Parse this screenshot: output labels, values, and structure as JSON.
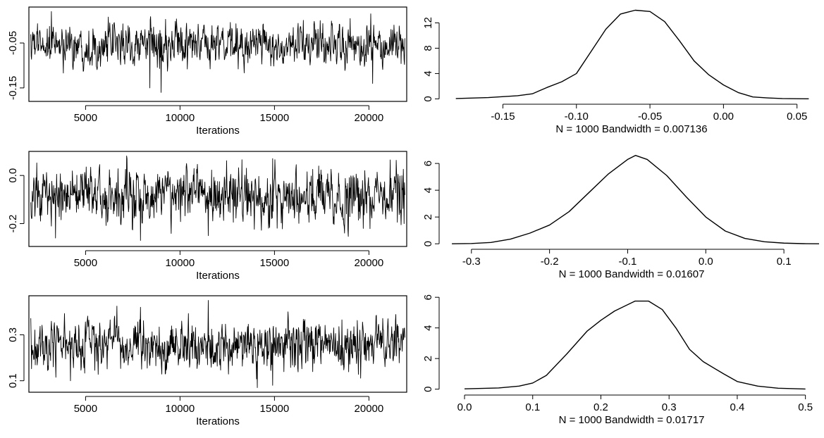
{
  "chart_data": [
    {
      "type": "line",
      "kind": "trace",
      "xlabel": "Iterations",
      "xlim": [
        2000,
        22000
      ],
      "ylim": [
        -0.18,
        0.03
      ],
      "xticks": [
        5000,
        10000,
        15000,
        20000
      ],
      "yticks": [
        -0.15,
        -0.05
      ],
      "ytick_labels": [
        "-0.15",
        "-0.05"
      ],
      "n_points": 1000,
      "center": -0.055,
      "spread": 0.022,
      "extremes": [
        [
          3200,
          0.02
        ],
        [
          9000,
          -0.16
        ],
        [
          8400,
          -0.15
        ],
        [
          20100,
          0.015
        ],
        [
          20200,
          -0.14
        ]
      ]
    },
    {
      "type": "line",
      "kind": "density",
      "xlabel": "N = 1000   Bandwidth = 0.007136",
      "xlim": [
        -0.19,
        0.065
      ],
      "ylim": [
        -0.4,
        14.5
      ],
      "xticks": [
        -0.15,
        -0.1,
        -0.05,
        0.0,
        0.05
      ],
      "xtick_labels": [
        "-0.15",
        "-0.10",
        "-0.05",
        "0.00",
        "0.05"
      ],
      "yticks": [
        0,
        4,
        8,
        12
      ],
      "x": [
        -0.182,
        -0.16,
        -0.14,
        -0.13,
        -0.12,
        -0.11,
        -0.1,
        -0.09,
        -0.08,
        -0.07,
        -0.06,
        -0.05,
        -0.04,
        -0.03,
        -0.02,
        -0.01,
        0.0,
        0.01,
        0.02,
        0.03,
        0.04,
        0.05,
        0.058
      ],
      "y": [
        0.05,
        0.2,
        0.5,
        0.8,
        1.8,
        2.7,
        4.0,
        7.5,
        11.0,
        13.4,
        14.0,
        13.8,
        12.2,
        9.2,
        6.0,
        3.8,
        2.2,
        1.0,
        0.3,
        0.15,
        0.05,
        0.02,
        0.01
      ]
    },
    {
      "type": "line",
      "kind": "trace",
      "xlabel": "Iterations",
      "xlim": [
        2000,
        22000
      ],
      "ylim": [
        -0.295,
        0.1
      ],
      "xticks": [
        5000,
        10000,
        15000,
        20000
      ],
      "yticks": [
        -0.2,
        0.0
      ],
      "ytick_labels": [
        "-0.2",
        "0.0"
      ],
      "n_points": 1000,
      "center": -0.09,
      "spread": 0.055,
      "extremes": [
        [
          7900,
          0.08
        ],
        [
          7900,
          -0.27
        ],
        [
          3400,
          -0.26
        ],
        [
          14900,
          0.07
        ],
        [
          11500,
          -0.25
        ]
      ]
    },
    {
      "type": "line",
      "kind": "density",
      "xlabel": "N = 1000   Bandwidth = 0.01607",
      "xlim": [
        -0.335,
        0.145
      ],
      "ylim": [
        -0.2,
        6.9
      ],
      "xticks": [
        -0.3,
        -0.2,
        -0.1,
        0.0,
        0.1
      ],
      "xtick_labels": [
        "-0.3",
        "-0.2",
        "-0.1",
        "0.0",
        "0.1"
      ],
      "yticks": [
        0,
        2,
        4,
        6
      ],
      "x": [
        -0.325,
        -0.3,
        -0.275,
        -0.25,
        -0.225,
        -0.2,
        -0.175,
        -0.15,
        -0.125,
        -0.1,
        -0.09,
        -0.075,
        -0.05,
        -0.025,
        0.0,
        0.025,
        0.05,
        0.075,
        0.1,
        0.125,
        0.145
      ],
      "y": [
        0.0,
        0.02,
        0.1,
        0.35,
        0.8,
        1.4,
        2.4,
        3.8,
        5.2,
        6.3,
        6.6,
        6.3,
        5.1,
        3.5,
        2.0,
        0.95,
        0.4,
        0.15,
        0.05,
        0.01,
        0.0
      ]
    },
    {
      "type": "line",
      "kind": "trace",
      "xlabel": "Iterations",
      "xlim": [
        2000,
        22000
      ],
      "ylim": [
        0.05,
        0.47
      ],
      "xticks": [
        5000,
        10000,
        15000,
        20000
      ],
      "yticks": [
        0.1,
        0.3
      ],
      "ytick_labels": [
        "0.1",
        "0.3"
      ],
      "n_points": 1000,
      "center": 0.26,
      "spread": 0.05,
      "extremes": [
        [
          11500,
          0.45
        ],
        [
          14100,
          0.07
        ],
        [
          14900,
          0.08
        ],
        [
          7900,
          0.42
        ],
        [
          4200,
          0.1
        ]
      ]
    },
    {
      "type": "line",
      "kind": "density",
      "xlabel": "N = 1000   Bandwidth = 0.01717",
      "xlim": [
        -0.03,
        0.52
      ],
      "ylim": [
        -0.2,
        6.1
      ],
      "xticks": [
        0.0,
        0.1,
        0.2,
        0.3,
        0.4,
        0.5
      ],
      "xtick_labels": [
        "0.0",
        "0.1",
        "0.2",
        "0.3",
        "0.4",
        "0.5"
      ],
      "yticks": [
        0,
        2,
        4,
        6
      ],
      "x": [
        0.0,
        0.05,
        0.08,
        0.1,
        0.12,
        0.15,
        0.18,
        0.2,
        0.22,
        0.25,
        0.27,
        0.29,
        0.31,
        0.33,
        0.35,
        0.38,
        0.4,
        0.43,
        0.46,
        0.5
      ],
      "y": [
        0.02,
        0.08,
        0.2,
        0.4,
        0.9,
        2.3,
        3.8,
        4.5,
        5.1,
        5.75,
        5.75,
        5.2,
        4.0,
        2.6,
        1.8,
        1.0,
        0.5,
        0.2,
        0.06,
        0.01
      ]
    }
  ]
}
